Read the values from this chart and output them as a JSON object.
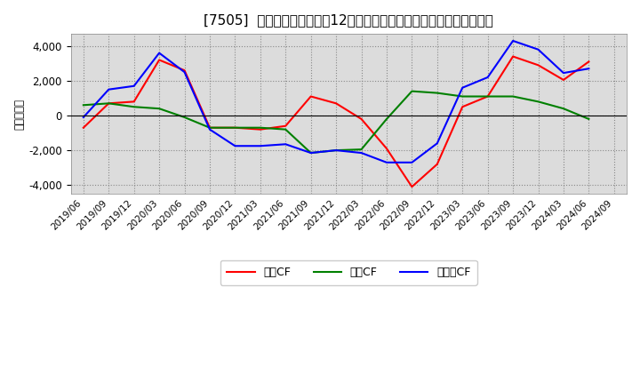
{
  "title": "[7505]  キャッシュフローの12か月移動合計の対前年同期増減額の推移",
  "ylabel": "（百万円）",
  "background_color": "#ffffff",
  "plot_background": "#dcdcdc",
  "grid_color": "#aaaaaa",
  "ylim": [
    -4500,
    4700
  ],
  "yticks": [
    -4000,
    -2000,
    0,
    2000,
    4000
  ],
  "x_labels": [
    "2019/06",
    "2019/09",
    "2019/12",
    "2020/03",
    "2020/06",
    "2020/09",
    "2020/12",
    "2021/03",
    "2021/06",
    "2021/09",
    "2021/12",
    "2022/03",
    "2022/06",
    "2022/09",
    "2022/12",
    "2023/03",
    "2023/06",
    "2023/09",
    "2023/12",
    "2024/03",
    "2024/06",
    "2024/09"
  ],
  "operating_cf": [
    -700,
    700,
    800,
    3200,
    2600,
    -700,
    -700,
    -800,
    -600,
    1100,
    700,
    -200,
    -1900,
    -4100,
    -2800,
    500,
    1100,
    3400,
    2900,
    2050,
    3100,
    null
  ],
  "investing_cf": [
    600,
    700,
    500,
    400,
    -100,
    -700,
    -700,
    -700,
    -800,
    -2150,
    -2000,
    -1950,
    -200,
    1400,
    1300,
    1100,
    1100,
    1100,
    800,
    400,
    -200,
    null
  ],
  "free_cf": [
    -100,
    1500,
    1700,
    3600,
    2500,
    -800,
    -1750,
    -1750,
    -1650,
    -2150,
    -2000,
    -2150,
    -2700,
    -2700,
    -1600,
    1600,
    2200,
    4300,
    3800,
    2450,
    2700,
    null
  ],
  "op_color": "#ff0000",
  "inv_color": "#008000",
  "free_color": "#0000ff",
  "legend_labels": [
    "営業CF",
    "投資CF",
    "フリーCF"
  ],
  "line_width": 1.5,
  "title_fontsize": 11
}
